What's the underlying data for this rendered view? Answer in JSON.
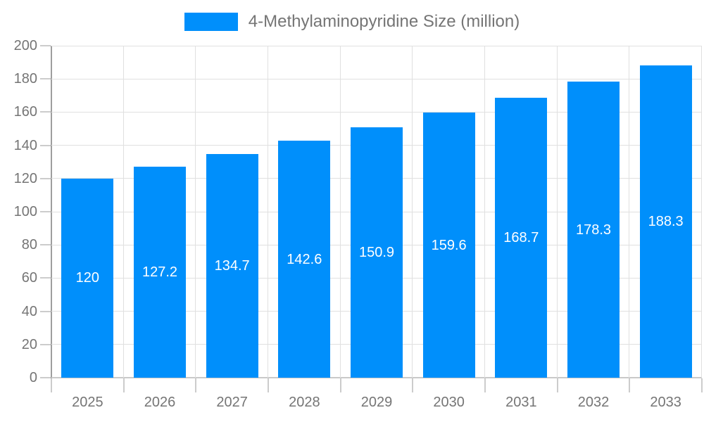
{
  "legend": {
    "label": "4-Methylaminopyridine Size (million)",
    "swatch_color": "#008ffb"
  },
  "chart_data": {
    "type": "bar",
    "title": "4-Methylaminopyridine Size (million)",
    "categories": [
      "2025",
      "2026",
      "2027",
      "2028",
      "2029",
      "2030",
      "2031",
      "2032",
      "2033"
    ],
    "values": [
      120,
      127.2,
      134.7,
      142.6,
      150.9,
      159.6,
      168.7,
      178.3,
      188.3
    ],
    "value_labels": [
      "120",
      "127.2",
      "134.7",
      "142.6",
      "150.9",
      "159.6",
      "168.7",
      "178.3",
      "188.3"
    ],
    "xlabel": "",
    "ylabel": "",
    "ylim": [
      0,
      200
    ],
    "yticks": [
      0,
      20,
      40,
      60,
      80,
      100,
      120,
      140,
      160,
      180,
      200
    ],
    "ytick_labels": [
      "0",
      "20",
      "40",
      "60",
      "80",
      "100",
      "120",
      "140",
      "160",
      "180",
      "200"
    ],
    "grid": true,
    "legend_position": "top-center",
    "colors": {
      "bar": "#008ffb",
      "value_label": "#ffffff",
      "axis_label": "#757575",
      "gridline": "#e0e0e0",
      "y_axis_line": "#9e9e9e",
      "x_axis_line": "#c9c9c9",
      "tick": "#cccccc"
    }
  }
}
